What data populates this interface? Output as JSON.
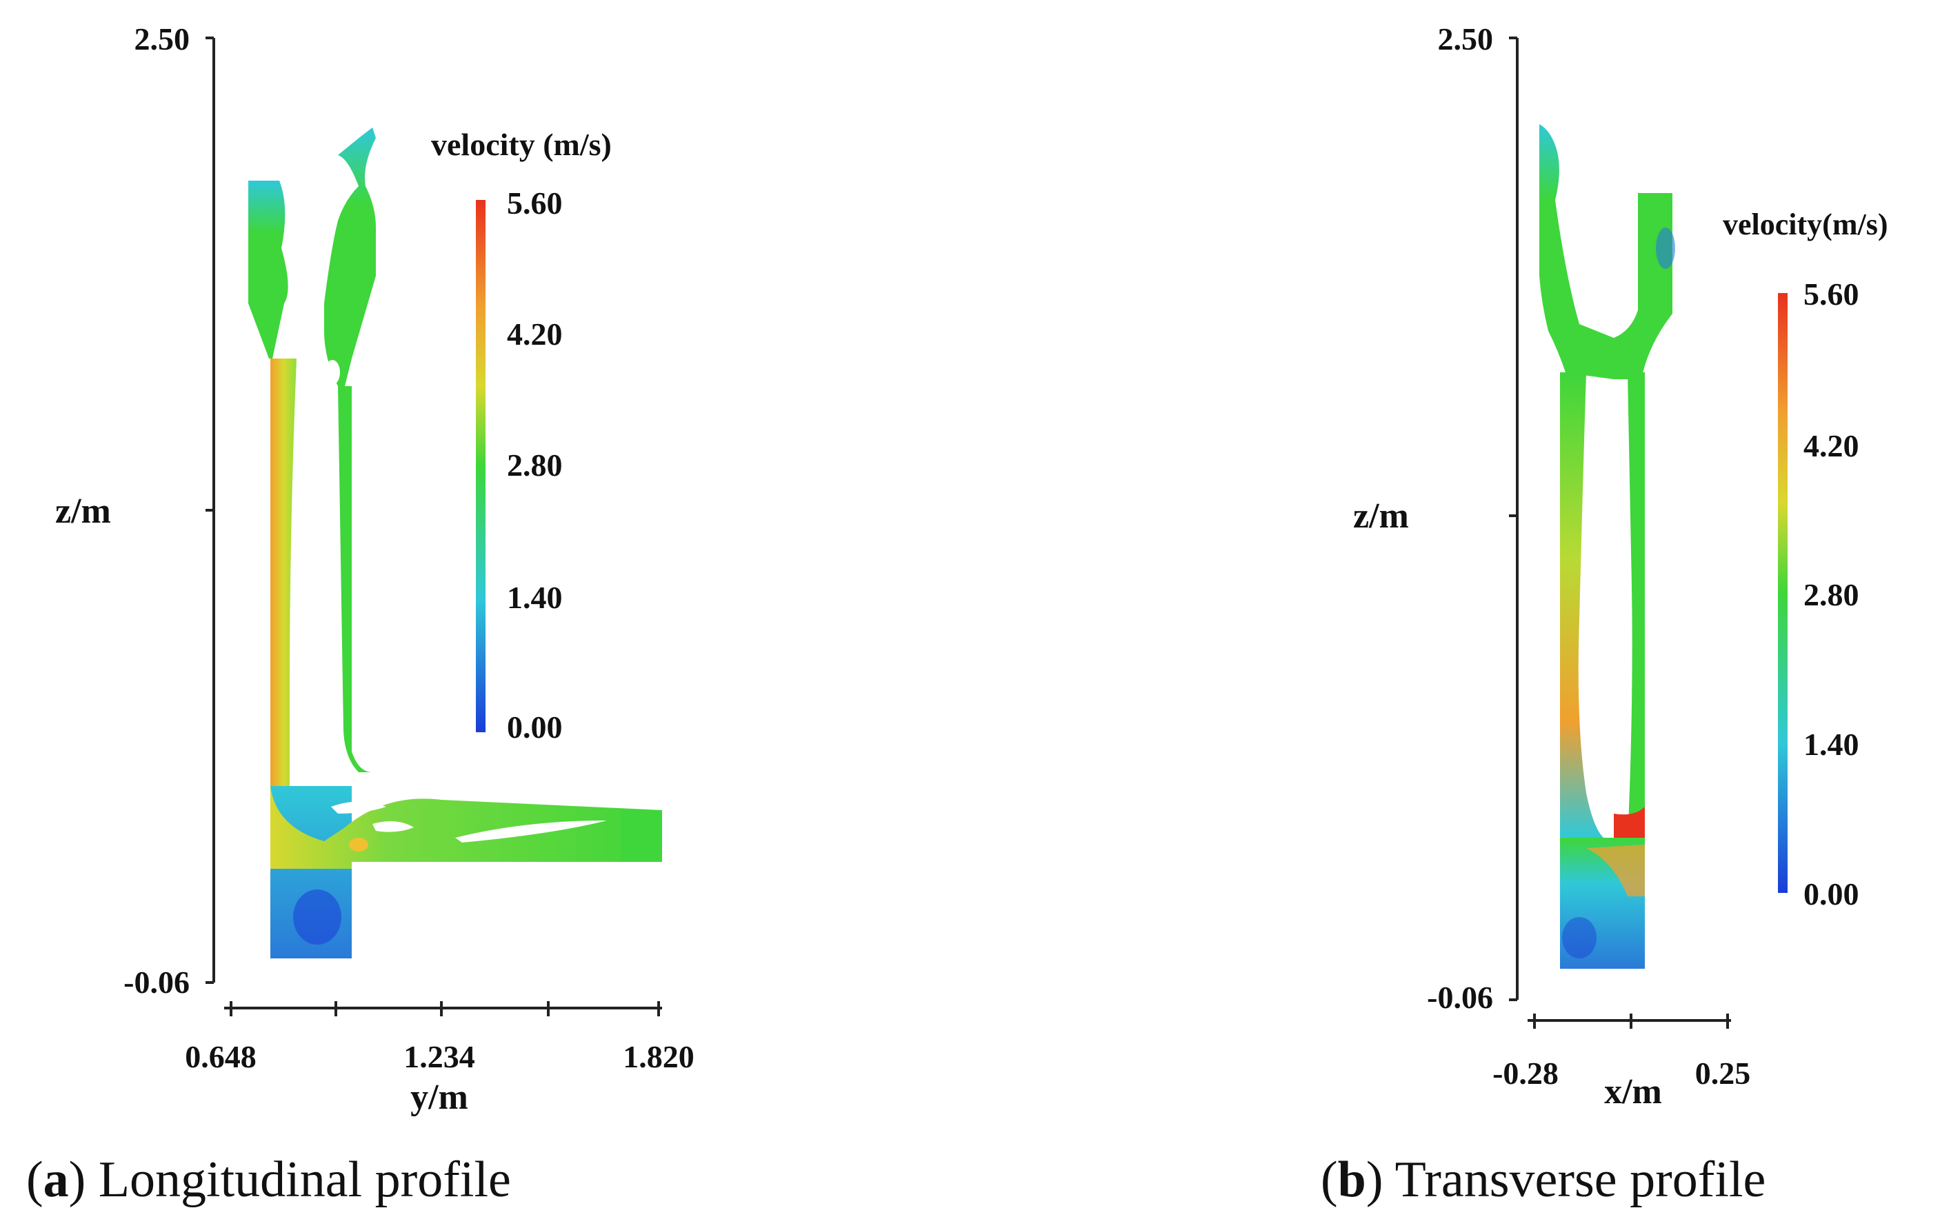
{
  "panel_a": {
    "caption_letter": "a",
    "caption_text": "Longitudinal profile",
    "z_axis": {
      "label": "z/m",
      "top": "2.50",
      "bottom": "-0.06"
    },
    "h_axis": {
      "label": "y/m",
      "ticks": [
        "0.648",
        "1.234",
        "1.820"
      ]
    },
    "colorbar": {
      "title": "velocity (m/s)",
      "ticks": [
        "5.60",
        "4.20",
        "2.80",
        "1.40",
        "0.00"
      ]
    }
  },
  "panel_b": {
    "caption_letter": "b",
    "caption_text": "Transverse profile",
    "z_axis": {
      "label": "z/m",
      "top": "2.50",
      "bottom": "-0.06"
    },
    "h_axis": {
      "label": "x/m",
      "ticks": [
        "-0.28",
        "0.25"
      ]
    },
    "colorbar": {
      "title": "velocity(m/s)",
      "ticks": [
        "5.60",
        "4.20",
        "2.80",
        "1.40",
        "0.00"
      ]
    }
  },
  "colors": {
    "max": "#e8321e",
    "high": "#f0a030",
    "mid_high": "#d8d830",
    "mid": "#3ed63a",
    "low": "#30c8d8",
    "min": "#1a3cd8"
  }
}
